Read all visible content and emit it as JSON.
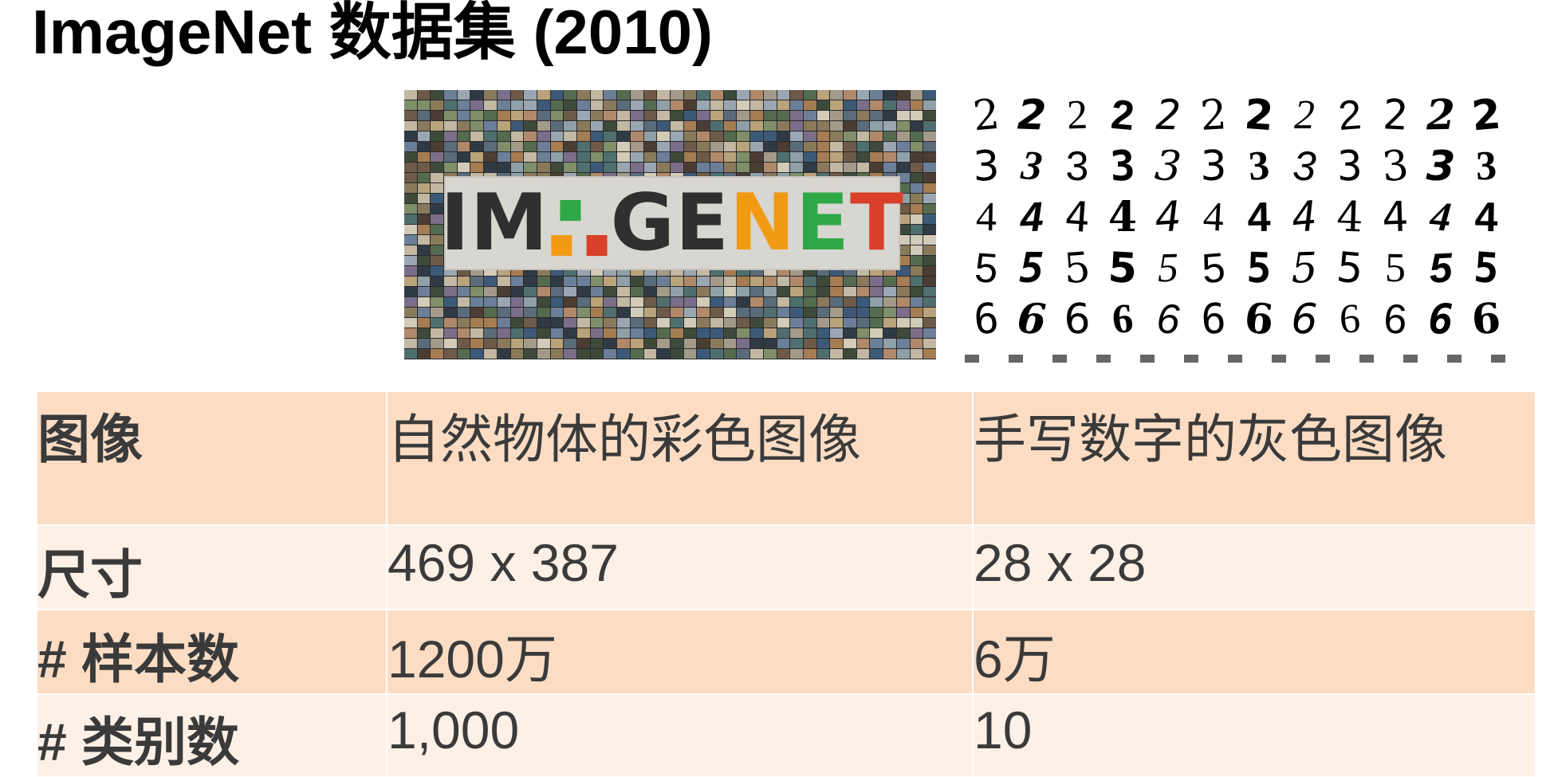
{
  "title": "ImageNet 数据集 (2010)",
  "imagenet_logo": {
    "letters": [
      "IM",
      "■",
      "■",
      "GE",
      "N",
      "E",
      "T"
    ],
    "colors": {
      "N": "#f29a14",
      "E": "#2fa746",
      "T": "#d9402a",
      "square_green": "#2fa746",
      "square_orange": "#f29a14",
      "square_red": "#d9402a"
    }
  },
  "mnist_digits": [
    [
      "2",
      "2",
      "2",
      "2",
      "2",
      "2",
      "2",
      "2",
      "2",
      "2",
      "2",
      "2"
    ],
    [
      "3",
      "3",
      "3",
      "3",
      "3",
      "3",
      "3",
      "3",
      "3",
      "3",
      "3",
      "3"
    ],
    [
      "4",
      "4",
      "4",
      "4",
      "4",
      "4",
      "4",
      "4",
      "4",
      "4",
      "4",
      "4"
    ],
    [
      "5",
      "5",
      "5",
      "5",
      "5",
      "5",
      "5",
      "5",
      "5",
      "5",
      "5",
      "5"
    ],
    [
      "6",
      "6",
      "6",
      "6",
      "6",
      "6",
      "6",
      "6",
      "6",
      "6",
      "6",
      "6"
    ]
  ],
  "table": {
    "rows": [
      {
        "label": "图像",
        "imagenet": "自然物体的彩色图像",
        "mnist": "手写数字的灰色图像"
      },
      {
        "label": "尺寸",
        "imagenet": "469 x 387",
        "mnist": "28 x 28"
      },
      {
        "label": "# 样本数",
        "imagenet": "1200万",
        "mnist": "6万"
      },
      {
        "label": "# 类别数",
        "imagenet": "1,000",
        "mnist": "10"
      }
    ]
  },
  "colors": {
    "row_dark": "#fcddc4",
    "row_light": "#fdf0e6",
    "text": "#3a3a3a"
  }
}
